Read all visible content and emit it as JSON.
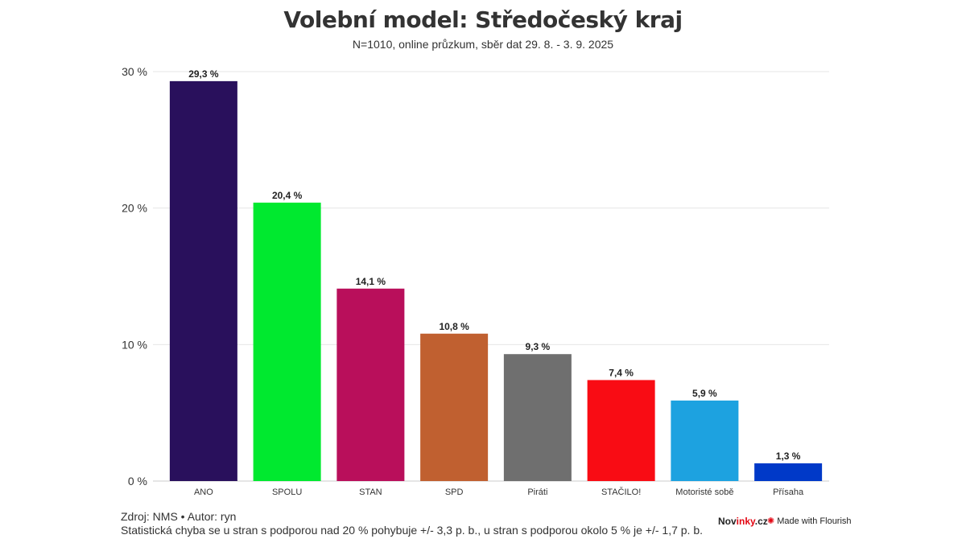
{
  "header": {
    "title": "Volební model: Středočeský kraj",
    "subtitle": "N=1010, online průzkum, sběr dat 29. 8. - 3. 9. 2025"
  },
  "footer": {
    "source": "Zdroj: NMS • Autor: ryn",
    "note": "Statistická chyba se u stran s podporou nad 20 % pohybuje +/- 3,3 p. b., u stran s podporou okolo 5 % je +/- 1,7 p. b.",
    "brand_a": "Nov",
    "brand_b": "inky",
    "brand_c": ".cz",
    "flourish": "Made with Flourish"
  },
  "chart_data": {
    "type": "bar",
    "categories": [
      "ANO",
      "SPOLU",
      "STAN",
      "SPD",
      "Piráti",
      "STAČILO!",
      "Motoristé sobě",
      "Přísaha"
    ],
    "values": [
      29.3,
      20.4,
      14.1,
      10.8,
      9.3,
      7.4,
      5.9,
      1.3
    ],
    "data_labels": [
      "29,3 %",
      "20,4 %",
      "14,1 %",
      "10,8 %",
      "9,3 %",
      "7,4 %",
      "5,9 %",
      "1,3 %"
    ],
    "colors": [
      "#29105c",
      "#00e92f",
      "#b90f5b",
      "#c06030",
      "#6f6f6f",
      "#f90c14",
      "#1da2e0",
      "#0039c8"
    ],
    "yticks": [
      0,
      10,
      20,
      30
    ],
    "ytick_labels": [
      "0 %",
      "10 %",
      "20 %",
      "30 %"
    ],
    "ylim": [
      0,
      30
    ],
    "grid": true,
    "xlabel": "",
    "ylabel": ""
  }
}
